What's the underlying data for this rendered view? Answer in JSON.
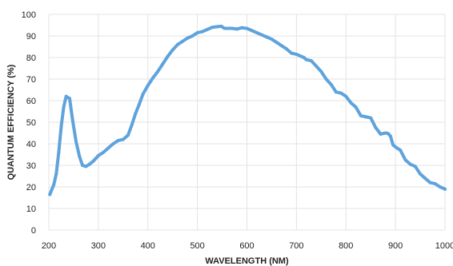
{
  "chart_data": {
    "type": "line",
    "title": "",
    "xlabel": "WAVELENGTH (NM)",
    "ylabel": "QUANTUM EFFICIENCY (%)",
    "xlim": [
      200,
      1000
    ],
    "ylim": [
      0,
      100
    ],
    "xticks": [
      200,
      300,
      400,
      500,
      600,
      700,
      800,
      900,
      1000
    ],
    "yticks": [
      0,
      10,
      20,
      30,
      40,
      50,
      60,
      70,
      80,
      90,
      100
    ],
    "grid": true,
    "legend": "none",
    "colors": {
      "series": "#5fa3dc",
      "grid": "#e3e3e3",
      "text": "#222222"
    },
    "series": [
      {
        "x": [
          202,
          210,
          215,
          220,
          225,
          230,
          235,
          238,
          242,
          248,
          255,
          262,
          268,
          275,
          282,
          290,
          300,
          310,
          320,
          330,
          340,
          350,
          360,
          368,
          375,
          382,
          390,
          400,
          410,
          420,
          430,
          440,
          450,
          460,
          470,
          480,
          490,
          500,
          510,
          520,
          530,
          540,
          548,
          555,
          562,
          570,
          580,
          590,
          600,
          610,
          620,
          630,
          640,
          650,
          660,
          670,
          680,
          690,
          700,
          710,
          715,
          720,
          730,
          740,
          750,
          760,
          770,
          780,
          790,
          800,
          810,
          820,
          830,
          840,
          850,
          860,
          870,
          880,
          885,
          890,
          895,
          900,
          910,
          920,
          930,
          940,
          950,
          960,
          970,
          980,
          990,
          1000
        ],
        "values": [
          16.5,
          21,
          26,
          36,
          48,
          57,
          62,
          61.5,
          61,
          51,
          41,
          34,
          30,
          29.5,
          30.5,
          32,
          34.5,
          36,
          38,
          40,
          41.5,
          42,
          44,
          49,
          54,
          58,
          63,
          67,
          70.5,
          73.5,
          77,
          80.5,
          83.5,
          86,
          87.5,
          89,
          90,
          91.5,
          92,
          93,
          94,
          94.3,
          94.5,
          93.5,
          93.5,
          93.5,
          93.2,
          93.8,
          93.5,
          92.5,
          91.5,
          90.5,
          89.5,
          88.5,
          87,
          85.5,
          84,
          82,
          81.5,
          80.5,
          80,
          79,
          78.5,
          76,
          73.5,
          70,
          67.5,
          64,
          63.5,
          62,
          59,
          57,
          53,
          52.5,
          52,
          47.5,
          44.5,
          45,
          44.8,
          43.5,
          39.5,
          38.5,
          37,
          32.5,
          30.5,
          29.5,
          26,
          24,
          22,
          21.5,
          20,
          19
        ]
      }
    ]
  }
}
